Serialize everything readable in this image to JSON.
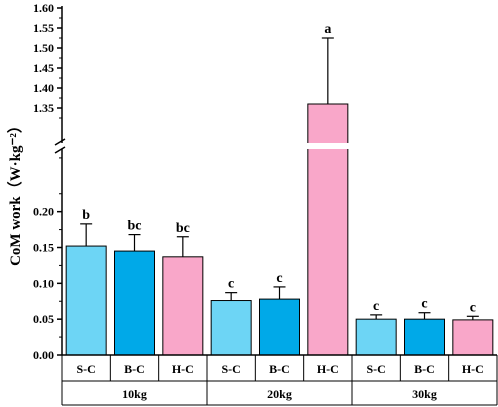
{
  "chart_data": {
    "type": "bar",
    "ylabel": "CoM work（W·kg⁻²）",
    "ylim_lower": [
      0,
      0.3
    ],
    "ylim_upper": [
      1.3,
      1.6
    ],
    "y_ticks_lower": [
      "0.00",
      "0.05",
      "0.10",
      "0.15",
      "0.20"
    ],
    "y_ticks_upper": [
      "1.35",
      "1.40",
      "1.45",
      "1.50",
      "1.55",
      "1.60"
    ],
    "groups": [
      {
        "name": "10kg",
        "bars": [
          {
            "label": "S-C",
            "value": 0.152,
            "error": 0.031,
            "sig": "b",
            "color": "#6dd5f5"
          },
          {
            "label": "B-C",
            "value": 0.145,
            "error": 0.023,
            "sig": "bc",
            "color": "#00a9e8"
          },
          {
            "label": "H-C",
            "value": 0.137,
            "error": 0.028,
            "sig": "bc",
            "color": "#f9a7c9"
          }
        ]
      },
      {
        "name": "20kg",
        "bars": [
          {
            "label": "S-C",
            "value": 0.076,
            "error": 0.011,
            "sig": "c",
            "color": "#6dd5f5"
          },
          {
            "label": "B-C",
            "value": 0.078,
            "error": 0.017,
            "sig": "c",
            "color": "#00a9e8"
          },
          {
            "label": "H-C",
            "value": 1.36,
            "error": 0.165,
            "sig": "a",
            "color": "#f9a7c9"
          }
        ]
      },
      {
        "name": "30kg",
        "bars": [
          {
            "label": "S-C",
            "value": 0.05,
            "error": 0.006,
            "sig": "c",
            "color": "#6dd5f5"
          },
          {
            "label": "B-C",
            "value": 0.05,
            "error": 0.009,
            "sig": "c",
            "color": "#00a9e8"
          },
          {
            "label": "H-C",
            "value": 0.049,
            "error": 0.005,
            "sig": "c",
            "color": "#f9a7c9"
          }
        ]
      }
    ]
  }
}
